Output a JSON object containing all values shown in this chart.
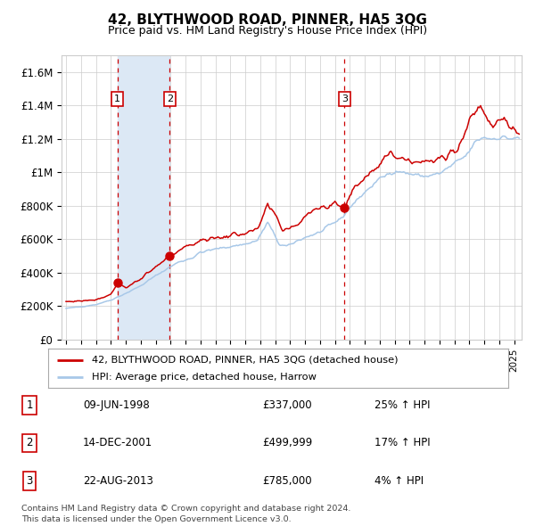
{
  "title": "42, BLYTHWOOD ROAD, PINNER, HA5 3QG",
  "subtitle": "Price paid vs. HM Land Registry's House Price Index (HPI)",
  "legend_line1": "42, BLYTHWOOD ROAD, PINNER, HA5 3QG (detached house)",
  "legend_line2": "HPI: Average price, detached house, Harrow",
  "footer_line1": "Contains HM Land Registry data © Crown copyright and database right 2024.",
  "footer_line2": "This data is licensed under the Open Government Licence v3.0.",
  "transactions": [
    {
      "num": 1,
      "date": "09-JUN-1998",
      "year": 1998.44,
      "price": 337000,
      "pct": "25%",
      "dir": "↑"
    },
    {
      "num": 2,
      "date": "14-DEC-2001",
      "year": 2001.95,
      "price": 499999,
      "pct": "17%",
      "dir": "↑"
    },
    {
      "num": 3,
      "date": "22-AUG-2013",
      "year": 2013.64,
      "price": 785000,
      "pct": "4%",
      "dir": "↑"
    }
  ],
  "hpi_color": "#a8c8e8",
  "price_color": "#cc0000",
  "dot_color": "#cc0000",
  "vline_color": "#cc0000",
  "shade_color": "#dce8f5",
  "grid_color": "#cccccc",
  "bg_color": "#ffffff",
  "ylim": [
    0,
    1700000
  ],
  "yticks": [
    0,
    200000,
    400000,
    600000,
    800000,
    1000000,
    1200000,
    1400000,
    1600000
  ],
  "ytick_labels": [
    "£0",
    "£200K",
    "£400K",
    "£600K",
    "£800K",
    "£1M",
    "£1.2M",
    "£1.4M",
    "£1.6M"
  ],
  "xlim_start": 1994.7,
  "xlim_end": 2025.5,
  "xticks": [
    1995,
    1996,
    1997,
    1998,
    1999,
    2000,
    2001,
    2002,
    2003,
    2004,
    2005,
    2006,
    2007,
    2008,
    2009,
    2010,
    2011,
    2012,
    2013,
    2014,
    2015,
    2016,
    2017,
    2018,
    2019,
    2020,
    2021,
    2022,
    2023,
    2024,
    2025
  ]
}
